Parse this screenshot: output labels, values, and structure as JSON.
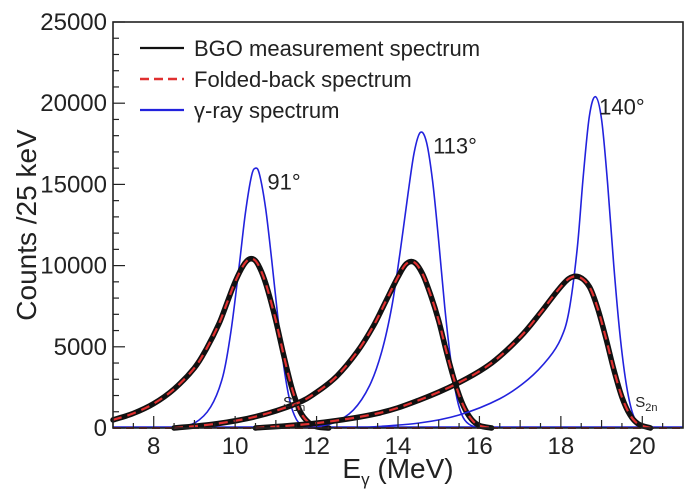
{
  "chart_data": {
    "type": "line",
    "title": "",
    "xlabel": "E",
    "xlabel_sub": "γ",
    "xlabel_unit": " (MeV)",
    "ylabel": "Counts /25 keV",
    "xlim": [
      7,
      21
    ],
    "ylim": [
      0,
      25000
    ],
    "x_ticks": [
      8,
      10,
      12,
      14,
      16,
      18,
      20
    ],
    "y_ticks": [
      0,
      5000,
      10000,
      15000,
      20000,
      25000
    ],
    "grid": false,
    "legend_position": "top-left",
    "legend": [
      {
        "label": "BGO measurement spectrum",
        "color": "#111111",
        "style": "solid"
      },
      {
        "label": "Folded-back spectrum",
        "color": "#e03030",
        "style": "dashed"
      },
      {
        "label": "γ-ray spectrum",
        "color": "#2222dd",
        "style": "solid"
      }
    ],
    "annotations": [
      {
        "text": "91°",
        "x": 11.2,
        "y": 14700
      },
      {
        "text": "113°",
        "x": 15.4,
        "y": 16900
      },
      {
        "text": "140°",
        "x": 19.5,
        "y": 19300
      }
    ],
    "threshold_labels": [
      {
        "text": "S",
        "sub": "1n",
        "x": 11.45,
        "y": 1300
      },
      {
        "text": "S",
        "sub": "2n",
        "x": 20.1,
        "y": 1300
      }
    ],
    "series": [
      {
        "group": "91°",
        "kind": "gamma",
        "color": "#2222dd",
        "x": [
          8.5,
          9.0,
          9.4,
          9.7,
          9.9,
          10.1,
          10.25,
          10.4,
          10.5,
          10.6,
          10.75,
          10.9,
          11.05,
          11.2,
          11.35,
          11.5,
          11.65,
          11.8,
          12.0
        ],
        "y": [
          0,
          300,
          1300,
          3200,
          6000,
          10000,
          13200,
          15500,
          16000,
          15600,
          13500,
          10300,
          6800,
          3700,
          1600,
          550,
          150,
          30,
          0
        ]
      },
      {
        "group": "91°",
        "kind": "measured",
        "color": "#111111",
        "x": [
          7.0,
          7.5,
          8.0,
          8.5,
          9.0,
          9.3,
          9.6,
          9.8,
          10.0,
          10.2,
          10.35,
          10.5,
          10.65,
          10.8,
          11.0,
          11.2,
          11.4,
          11.6,
          11.8,
          12.0,
          12.3
        ],
        "y": [
          500,
          900,
          1500,
          2400,
          3700,
          4900,
          6400,
          7700,
          9000,
          10000,
          10400,
          10300,
          9600,
          8500,
          6600,
          4400,
          2400,
          1000,
          350,
          80,
          0
        ]
      },
      {
        "group": "113°",
        "kind": "gamma",
        "color": "#2222dd",
        "x": [
          11.8,
          12.4,
          12.9,
          13.3,
          13.6,
          13.85,
          14.05,
          14.25,
          14.4,
          14.55,
          14.7,
          14.85,
          15.0,
          15.15,
          15.3,
          15.45,
          15.6,
          15.8,
          16.1
        ],
        "y": [
          0,
          300,
          1100,
          2600,
          4700,
          7500,
          10800,
          14500,
          17000,
          18200,
          17600,
          15200,
          11500,
          7400,
          4100,
          1800,
          650,
          150,
          0
        ]
      },
      {
        "group": "113°",
        "kind": "measured",
        "color": "#111111",
        "x": [
          8.5,
          9.5,
          10.5,
          11.5,
          12.0,
          12.5,
          13.0,
          13.4,
          13.7,
          14.0,
          14.2,
          14.4,
          14.6,
          14.8,
          15.0,
          15.2,
          15.4,
          15.6,
          15.8,
          16.0,
          16.3
        ],
        "y": [
          0,
          250,
          700,
          1500,
          2200,
          3200,
          4700,
          6300,
          7800,
          9300,
          10100,
          10200,
          9500,
          8200,
          6600,
          4600,
          2800,
          1400,
          550,
          150,
          0
        ]
      },
      {
        "group": "140°",
        "kind": "gamma",
        "color": "#2222dd",
        "x": [
          13.0,
          14.5,
          15.5,
          16.5,
          17.2,
          17.7,
          18.0,
          18.2,
          18.4,
          18.55,
          18.7,
          18.85,
          19.0,
          19.15,
          19.3,
          19.45,
          19.6,
          19.75,
          19.9,
          20.1
        ],
        "y": [
          0,
          300,
          800,
          1800,
          3000,
          4300,
          5500,
          7200,
          11000,
          15500,
          19200,
          20400,
          19000,
          15000,
          10000,
          5800,
          2800,
          1000,
          300,
          0
        ]
      },
      {
        "group": "140°",
        "kind": "measured",
        "color": "#111111",
        "x": [
          10.5,
          12.0,
          13.5,
          14.5,
          15.5,
          16.3,
          17.0,
          17.5,
          17.9,
          18.2,
          18.45,
          18.7,
          18.9,
          19.1,
          19.3,
          19.5,
          19.7,
          19.9,
          20.2
        ],
        "y": [
          0,
          300,
          900,
          1700,
          2800,
          4000,
          5600,
          7100,
          8400,
          9200,
          9300,
          8700,
          7400,
          5600,
          3600,
          1900,
          800,
          250,
          0
        ]
      }
    ]
  }
}
